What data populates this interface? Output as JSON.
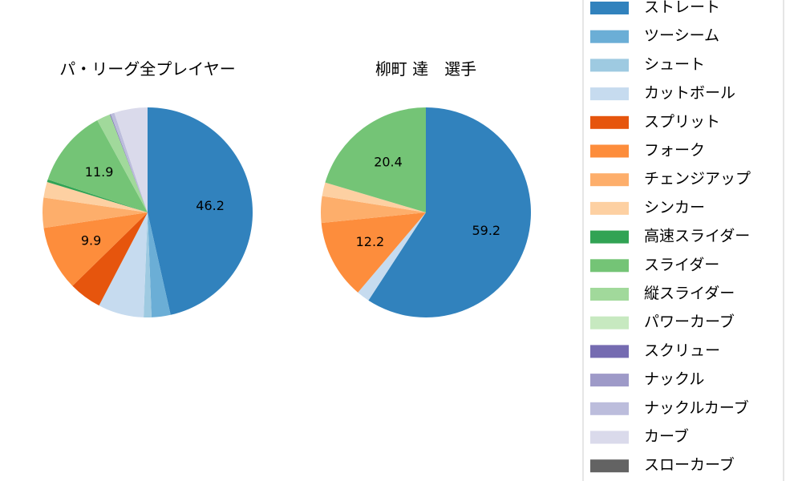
{
  "chart_data": [
    {
      "type": "pie",
      "title": "パ・リーグ全プレイヤー",
      "slices": [
        {
          "name": "ストレート",
          "value": 46.2,
          "label": "46.2"
        },
        {
          "name": "ツーシーム",
          "value": 2.9,
          "label": ""
        },
        {
          "name": "シュート",
          "value": 1.2,
          "label": ""
        },
        {
          "name": "カットボール",
          "value": 7.0,
          "label": ""
        },
        {
          "name": "スプリット",
          "value": 5.0,
          "label": ""
        },
        {
          "name": "フォーク",
          "value": 9.9,
          "label": "9.9"
        },
        {
          "name": "チェンジアップ",
          "value": 4.6,
          "label": ""
        },
        {
          "name": "シンカー",
          "value": 2.4,
          "label": ""
        },
        {
          "name": "高速スライダー",
          "value": 0.4,
          "label": ""
        },
        {
          "name": "スライダー",
          "value": 11.9,
          "label": "11.9"
        },
        {
          "name": "縦スライダー",
          "value": 2.1,
          "label": ""
        },
        {
          "name": "パワーカーブ",
          "value": 0.0,
          "label": ""
        },
        {
          "name": "スクリュー",
          "value": 0.1,
          "label": ""
        },
        {
          "name": "ナックル",
          "value": 0.0,
          "label": ""
        },
        {
          "name": "ナックルカーブ",
          "value": 0.6,
          "label": ""
        },
        {
          "name": "カーブ",
          "value": 5.1,
          "label": ""
        },
        {
          "name": "スローカーブ",
          "value": 0.0,
          "label": ""
        }
      ]
    },
    {
      "type": "pie",
      "title": "柳町 達　選手",
      "slices": [
        {
          "name": "ストレート",
          "value": 59.2,
          "label": "59.2"
        },
        {
          "name": "ツーシーム",
          "value": 0,
          "label": ""
        },
        {
          "name": "シュート",
          "value": 0,
          "label": ""
        },
        {
          "name": "カットボール",
          "value": 2.0,
          "label": ""
        },
        {
          "name": "スプリット",
          "value": 0,
          "label": ""
        },
        {
          "name": "フォーク",
          "value": 12.2,
          "label": "12.2"
        },
        {
          "name": "チェンジアップ",
          "value": 4.1,
          "label": ""
        },
        {
          "name": "シンカー",
          "value": 2.1,
          "label": ""
        },
        {
          "name": "高速スライダー",
          "value": 0,
          "label": ""
        },
        {
          "name": "スライダー",
          "value": 20.4,
          "label": "20.4"
        },
        {
          "name": "縦スライダー",
          "value": 0,
          "label": ""
        },
        {
          "name": "パワーカーブ",
          "value": 0,
          "label": ""
        },
        {
          "name": "スクリュー",
          "value": 0,
          "label": ""
        },
        {
          "name": "ナックル",
          "value": 0,
          "label": ""
        },
        {
          "name": "ナックルカーブ",
          "value": 0,
          "label": ""
        },
        {
          "name": "カーブ",
          "value": 0,
          "label": ""
        },
        {
          "name": "スローカーブ",
          "value": 0,
          "label": ""
        }
      ]
    }
  ],
  "legend": {
    "placement": "right",
    "items": [
      {
        "name": "ストレート",
        "color": "#3182bd"
      },
      {
        "name": "ツーシーム",
        "color": "#6baed6"
      },
      {
        "name": "シュート",
        "color": "#9ecae1"
      },
      {
        "name": "カットボール",
        "color": "#c6dbef"
      },
      {
        "name": "スプリット",
        "color": "#e6550d"
      },
      {
        "name": "フォーク",
        "color": "#fd8d3c"
      },
      {
        "name": "チェンジアップ",
        "color": "#fdae6b"
      },
      {
        "name": "シンカー",
        "color": "#fdd0a2"
      },
      {
        "name": "高速スライダー",
        "color": "#31a354"
      },
      {
        "name": "スライダー",
        "color": "#74c476"
      },
      {
        "name": "縦スライダー",
        "color": "#a1d99b"
      },
      {
        "name": "パワーカーブ",
        "color": "#c7e9c0"
      },
      {
        "name": "スクリュー",
        "color": "#756bb1"
      },
      {
        "name": "ナックル",
        "color": "#9e9ac8"
      },
      {
        "name": "ナックルカーブ",
        "color": "#bcbddc"
      },
      {
        "name": "カーブ",
        "color": "#dadaeb"
      },
      {
        "name": "スローカーブ",
        "color": "#636363"
      }
    ]
  }
}
